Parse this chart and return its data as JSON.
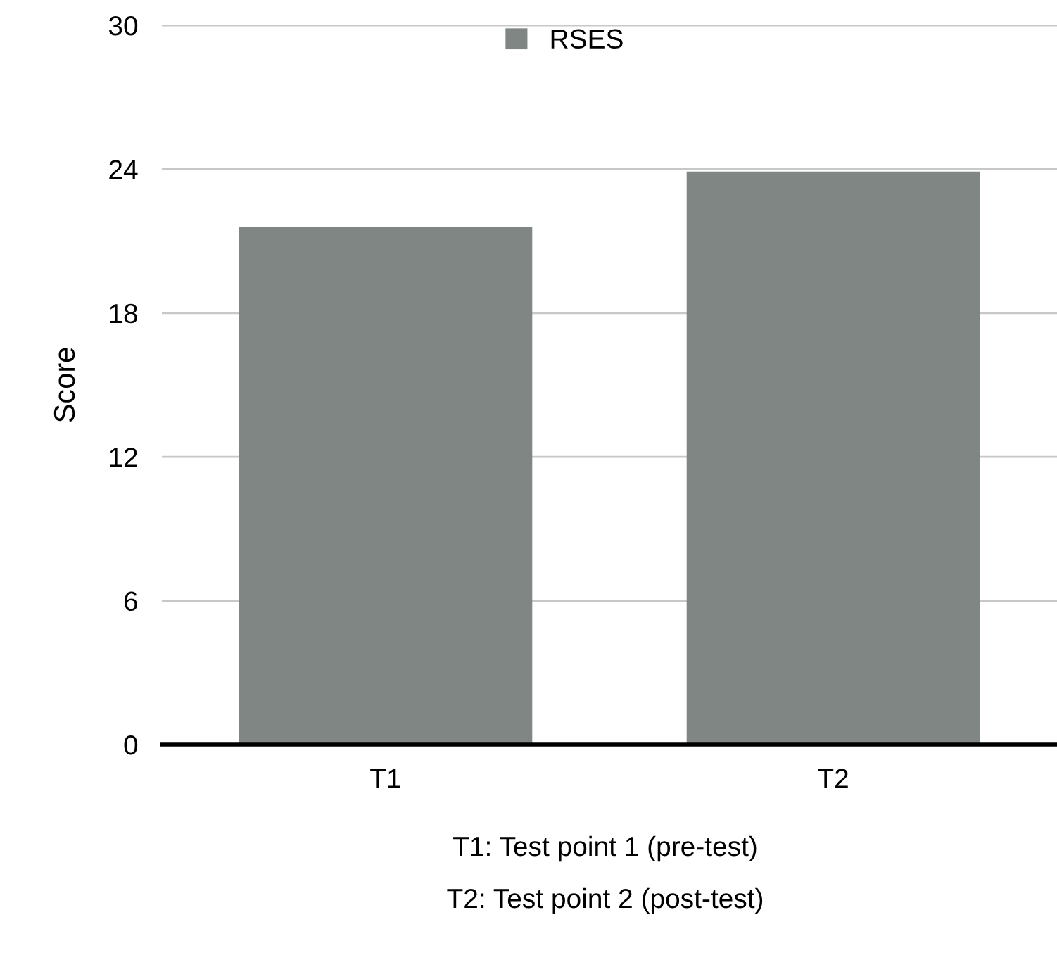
{
  "chart_data": {
    "type": "bar",
    "ylabel": "Score",
    "categories": [
      "T1",
      "T2"
    ],
    "series": [
      {
        "name": "RSES",
        "color": "#808683",
        "values": [
          21.6,
          23.9
        ]
      }
    ],
    "ylim": [
      0,
      30
    ],
    "yticks": [
      0,
      6,
      12,
      18,
      24,
      30
    ],
    "grid": "y",
    "legend": "top",
    "annotations": [
      "T1: Test point 1 (pre-test)",
      "T2: Test point 2 (post-test)"
    ]
  }
}
